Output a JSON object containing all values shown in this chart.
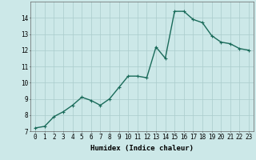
{
  "x": [
    0,
    1,
    2,
    3,
    4,
    5,
    6,
    7,
    8,
    9,
    10,
    11,
    12,
    13,
    14,
    15,
    16,
    17,
    18,
    19,
    20,
    21,
    22,
    23
  ],
  "y": [
    7.2,
    7.3,
    7.9,
    8.2,
    8.6,
    9.1,
    8.9,
    8.6,
    9.0,
    9.7,
    10.4,
    10.4,
    10.3,
    12.2,
    11.5,
    14.4,
    14.4,
    13.9,
    13.7,
    12.9,
    12.5,
    12.4,
    12.1,
    12.0
  ],
  "line_color": "#1a6b5a",
  "marker": "+",
  "bg_color": "#cce8e8",
  "grid_color": "#aacccc",
  "xlabel": "Humidex (Indice chaleur)",
  "xlim": [
    -0.5,
    23.5
  ],
  "ylim": [
    7,
    15
  ],
  "yticks": [
    7,
    8,
    9,
    10,
    11,
    12,
    13,
    14
  ],
  "xticks": [
    0,
    1,
    2,
    3,
    4,
    5,
    6,
    7,
    8,
    9,
    10,
    11,
    12,
    13,
    14,
    15,
    16,
    17,
    18,
    19,
    20,
    21,
    22,
    23
  ],
  "xlabel_fontsize": 6.5,
  "tick_fontsize": 5.5,
  "linewidth": 1.0,
  "markersize": 3
}
